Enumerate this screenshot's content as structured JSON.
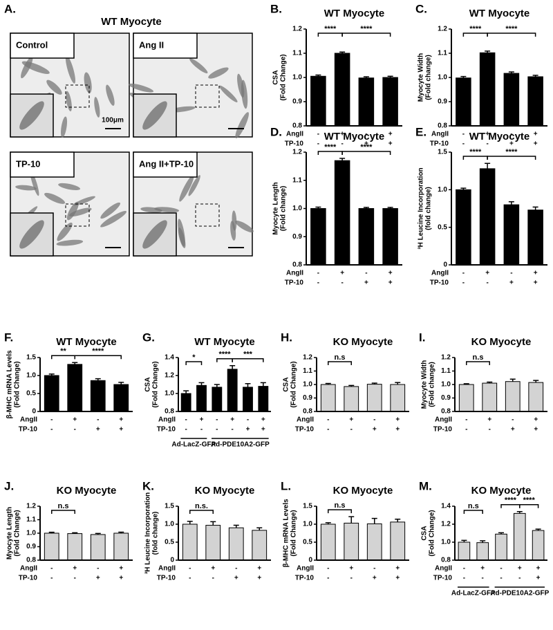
{
  "panel_a": {
    "label": "A.",
    "title": "WT Myocyte",
    "images": [
      {
        "label": "Control",
        "scale_bar": "100μm"
      },
      {
        "label": "Ang II"
      },
      {
        "label": "TP-10"
      },
      {
        "label": "Ang II+TP-10"
      }
    ]
  },
  "chart_data": [
    {
      "type": "bar",
      "panel": "B.",
      "title": "WT Myocyte",
      "y_label": [
        "CSA",
        "(Fold Change)"
      ],
      "color": "#000000",
      "ylim": [
        0.8,
        1.2
      ],
      "yticks": [
        0.8,
        0.9,
        {
          "value": 1,
          "label": "1.0"
        },
        1.1,
        1.2
      ],
      "values": [
        1.005,
        1.1,
        0.998,
        1.0
      ],
      "errors": [
        0.005,
        0.005,
        0.005,
        0.005
      ],
      "conditions": [
        {
          "name": "AngII",
          "values": [
            "-",
            "+",
            "-",
            "+"
          ]
        },
        {
          "name": "TP-10",
          "values": [
            "-",
            "-",
            "+",
            "+"
          ]
        }
      ],
      "annotations": [
        {
          "text": "****",
          "from": 0,
          "to": 1
        },
        {
          "text": "****",
          "from": 1,
          "to": 3
        }
      ]
    },
    {
      "type": "bar",
      "panel": "C.",
      "title": "WT Myocyte",
      "y_label": [
        "Myocyte Width",
        "(Fold change)"
      ],
      "color": "#000000",
      "ylim": [
        0.8,
        1.2
      ],
      "yticks": [
        0.8,
        0.9,
        {
          "value": 1,
          "label": "1.0"
        },
        1.1,
        1.2
      ],
      "values": [
        0.998,
        1.102,
        1.017,
        1.003
      ],
      "errors": [
        0.006,
        0.007,
        0.006,
        0.006
      ],
      "conditions": [
        {
          "name": "AngII",
          "values": [
            "-",
            "+",
            "-",
            "+"
          ]
        },
        {
          "name": "TP-10",
          "values": [
            "-",
            "-",
            "+",
            "+"
          ]
        }
      ],
      "annotations": [
        {
          "text": "****",
          "from": 0,
          "to": 1
        },
        {
          "text": "****",
          "from": 1,
          "to": 3
        }
      ]
    },
    {
      "type": "bar",
      "panel": "D.",
      "title": "WT Myocyte",
      "y_label": [
        "Myocyte Length",
        "(Fold change)"
      ],
      "color": "#000000",
      "ylim": [
        0.8,
        1.2
      ],
      "yticks": [
        0.8,
        0.9,
        {
          "value": 1,
          "label": "1.0"
        },
        1.1,
        1.2
      ],
      "values": [
        1.0,
        1.17,
        1.0,
        1.0
      ],
      "errors": [
        0.005,
        0.008,
        0.004,
        0.004
      ],
      "conditions": [
        {
          "name": "AngII",
          "values": [
            "-",
            "+",
            "-",
            "+"
          ]
        },
        {
          "name": "TP-10",
          "values": [
            "-",
            "-",
            "+",
            "+"
          ]
        }
      ],
      "annotations": [
        {
          "text": "****",
          "from": 0,
          "to": 1
        },
        {
          "text": "****",
          "from": 1,
          "to": 3
        }
      ]
    },
    {
      "type": "bar",
      "panel": "E.",
      "title": "WT Myocyte",
      "y_label": [
        "³H Leucine Incorporation",
        "(fold change)"
      ],
      "color": "#000000",
      "ylim": [
        0,
        1.5
      ],
      "yticks": [
        0,
        0.5,
        {
          "value": 1,
          "label": "1.0"
        },
        1.5
      ],
      "values": [
        1.0,
        1.28,
        0.8,
        0.73
      ],
      "errors": [
        0.02,
        0.07,
        0.04,
        0.04
      ],
      "conditions": [
        {
          "name": "AngII",
          "values": [
            "-",
            "+",
            "-",
            "+"
          ]
        },
        {
          "name": "TP-10",
          "values": [
            "-",
            "-",
            "+",
            "+"
          ]
        }
      ],
      "annotations": [
        {
          "text": "****",
          "from": 0,
          "to": 1
        },
        {
          "text": "****",
          "from": 1,
          "to": 3
        }
      ]
    },
    {
      "type": "bar",
      "panel": "F.",
      "title": "WT Myocyte",
      "y_label": [
        "β-MHC mRNA Levels",
        "(Fold Change)"
      ],
      "color": "#000000",
      "ylim": [
        0,
        1.5
      ],
      "yticks": [
        0,
        0.5,
        {
          "value": 1,
          "label": "1.0"
        },
        1.5
      ],
      "values": [
        1.0,
        1.31,
        0.86,
        0.75
      ],
      "errors": [
        0.04,
        0.05,
        0.05,
        0.06
      ],
      "conditions": [
        {
          "name": "AngII",
          "values": [
            "-",
            "+",
            "-",
            "+"
          ]
        },
        {
          "name": "TP-10",
          "values": [
            "-",
            "-",
            "+",
            "+"
          ]
        }
      ],
      "annotations": [
        {
          "text": "**",
          "from": 0,
          "to": 1
        },
        {
          "text": "****",
          "from": 1,
          "to": 3
        }
      ]
    },
    {
      "type": "bar",
      "panel": "G.",
      "title": "WT Myocyte",
      "y_label": [
        "CSA",
        "(Fold Change)"
      ],
      "color": "#000000",
      "ylim": [
        0.8,
        1.4
      ],
      "yticks": [
        0.8,
        {
          "value": 1,
          "label": "1.0"
        },
        1.2,
        1.4
      ],
      "values": [
        1.0,
        1.09,
        1.07,
        1.27,
        1.07,
        1.08
      ],
      "errors": [
        0.03,
        0.03,
        0.03,
        0.04,
        0.04,
        0.04
      ],
      "conditions": [
        {
          "name": "AngII",
          "values": [
            "-",
            "+",
            "-",
            "+",
            "-",
            "+"
          ]
        },
        {
          "name": "TP-10",
          "values": [
            "-",
            "-",
            "-",
            "-",
            "+",
            "+"
          ]
        }
      ],
      "groups": [
        {
          "label": "Ad-LacZ-GFP",
          "from": 0,
          "to": 1
        },
        {
          "label": "Ad-PDE10A2-GFP",
          "from": 2,
          "to": 5
        }
      ],
      "annotations": [
        {
          "text": "*",
          "from": 0,
          "to": 1
        },
        {
          "text": "****",
          "from": 2,
          "to": 3
        },
        {
          "text": "***",
          "from": 3,
          "to": 5
        }
      ]
    },
    {
      "type": "bar",
      "panel": "H.",
      "title": "KO Myocyte",
      "y_label": [
        "CSA",
        "(Fold Change)"
      ],
      "color": "#d3d3d3",
      "ylim": [
        0.8,
        1.2
      ],
      "yticks": [
        0.8,
        0.9,
        {
          "value": 1,
          "label": "1.0"
        },
        1.1,
        1.2
      ],
      "values": [
        1.0,
        0.985,
        1.002,
        1.0
      ],
      "errors": [
        0.008,
        0.008,
        0.008,
        0.015
      ],
      "conditions": [
        {
          "name": "AngII",
          "values": [
            "-",
            "+",
            "-",
            "+"
          ]
        },
        {
          "name": "TP-10",
          "values": [
            "-",
            "-",
            "+",
            "+"
          ]
        }
      ],
      "annotations": [
        {
          "text": "n.s",
          "from": 0,
          "to": 1
        }
      ]
    },
    {
      "type": "bar",
      "panel": "I.",
      "title": "KO Myocyte",
      "y_label": [
        "Myocyte Width",
        "(Fold change)"
      ],
      "color": "#d3d3d3",
      "ylim": [
        0.8,
        1.2
      ],
      "yticks": [
        0.8,
        0.9,
        {
          "value": 1,
          "label": "1.0"
        },
        1.1,
        1.2
      ],
      "values": [
        1.0,
        1.01,
        1.022,
        1.015
      ],
      "errors": [
        0.006,
        0.008,
        0.018,
        0.015
      ],
      "conditions": [
        {
          "name": "AngII",
          "values": [
            "-",
            "+",
            "-",
            "+"
          ]
        },
        {
          "name": "TP-10",
          "values": [
            "-",
            "-",
            "+",
            "+"
          ]
        }
      ],
      "annotations": [
        {
          "text": "n.s",
          "from": 0,
          "to": 1
        }
      ]
    },
    {
      "type": "bar",
      "panel": "J.",
      "title": "KO Myocyte",
      "y_label": [
        "Myocyte Length",
        "(Fold Change)"
      ],
      "color": "#d3d3d3",
      "ylim": [
        0.8,
        1.2
      ],
      "yticks": [
        0.8,
        0.9,
        {
          "value": 1,
          "label": "1.0"
        },
        1.1,
        1.2
      ],
      "values": [
        1.0,
        0.997,
        0.99,
        1.0
      ],
      "errors": [
        0.007,
        0.006,
        0.008,
        0.008
      ],
      "conditions": [
        {
          "name": "AngII",
          "values": [
            "-",
            "+",
            "-",
            "+"
          ]
        },
        {
          "name": "TP-10",
          "values": [
            "-",
            "-",
            "+",
            "+"
          ]
        }
      ],
      "annotations": [
        {
          "text": "n.s",
          "from": 0,
          "to": 1
        }
      ]
    },
    {
      "type": "bar",
      "panel": "K.",
      "title": "KO Myocyte",
      "y_label": [
        "³H Leucine Incorporation",
        "(fold change)"
      ],
      "color": "#d3d3d3",
      "ylim": [
        0,
        1.5
      ],
      "yticks": [
        0,
        0.5,
        {
          "value": 1,
          "label": "1.0"
        },
        1.5
      ],
      "values": [
        1.0,
        0.97,
        0.9,
        0.83
      ],
      "errors": [
        0.08,
        0.1,
        0.07,
        0.07
      ],
      "conditions": [
        {
          "name": "AngII",
          "values": [
            "-",
            "+",
            "-",
            "+"
          ]
        },
        {
          "name": "TP-10",
          "values": [
            "-",
            "-",
            "+",
            "+"
          ]
        }
      ],
      "annotations": [
        {
          "text": "n.s.",
          "from": 0,
          "to": 1
        }
      ]
    },
    {
      "type": "bar",
      "panel": "L.",
      "title": "KO Myocyte",
      "y_label": [
        "β-MHC mRNA Levels",
        "(Fold Change)"
      ],
      "color": "#d3d3d3",
      "ylim": [
        0,
        1.5
      ],
      "yticks": [
        0,
        0.5,
        {
          "value": 1,
          "label": "1.0"
        },
        1.5
      ],
      "values": [
        1.0,
        1.03,
        1.01,
        1.06
      ],
      "errors": [
        0.04,
        0.18,
        0.15,
        0.08
      ],
      "conditions": [
        {
          "name": "AngII",
          "values": [
            "-",
            "+",
            "-",
            "+"
          ]
        },
        {
          "name": "TP-10",
          "values": [
            "-",
            "-",
            "+",
            "+"
          ]
        }
      ],
      "annotations": [
        {
          "text": "n.s",
          "from": 0,
          "to": 1
        }
      ]
    },
    {
      "type": "bar",
      "panel": "M.",
      "title": "KO Myocyte",
      "y_label": [
        "CSA",
        "(Fold Change)"
      ],
      "color": "#d3d3d3",
      "ylim": [
        0.8,
        1.4
      ],
      "yticks": [
        0.8,
        {
          "value": 1,
          "label": "1.0"
        },
        1.2,
        1.4
      ],
      "values": [
        1.0,
        0.995,
        1.09,
        1.32,
        1.13
      ],
      "errors": [
        0.02,
        0.02,
        0.015,
        0.02,
        0.015
      ],
      "conditions": [
        {
          "name": "AngII",
          "values": [
            "-",
            "+",
            "-",
            "+",
            "+"
          ]
        },
        {
          "name": "TP-10",
          "values": [
            "-",
            "-",
            "-",
            "-",
            "+"
          ]
        }
      ],
      "groups": [
        {
          "label": "Ad-LacZ-GFP",
          "from": 0,
          "to": 1
        },
        {
          "label": "Ad-PDE10A2-GFP",
          "from": 2,
          "to": 4
        }
      ],
      "annotations": [
        {
          "text": "n.s",
          "from": 0,
          "to": 1
        },
        {
          "text": "****",
          "from": 2,
          "to": 3
        },
        {
          "text": "****",
          "from": 3,
          "to": 4
        }
      ]
    }
  ]
}
